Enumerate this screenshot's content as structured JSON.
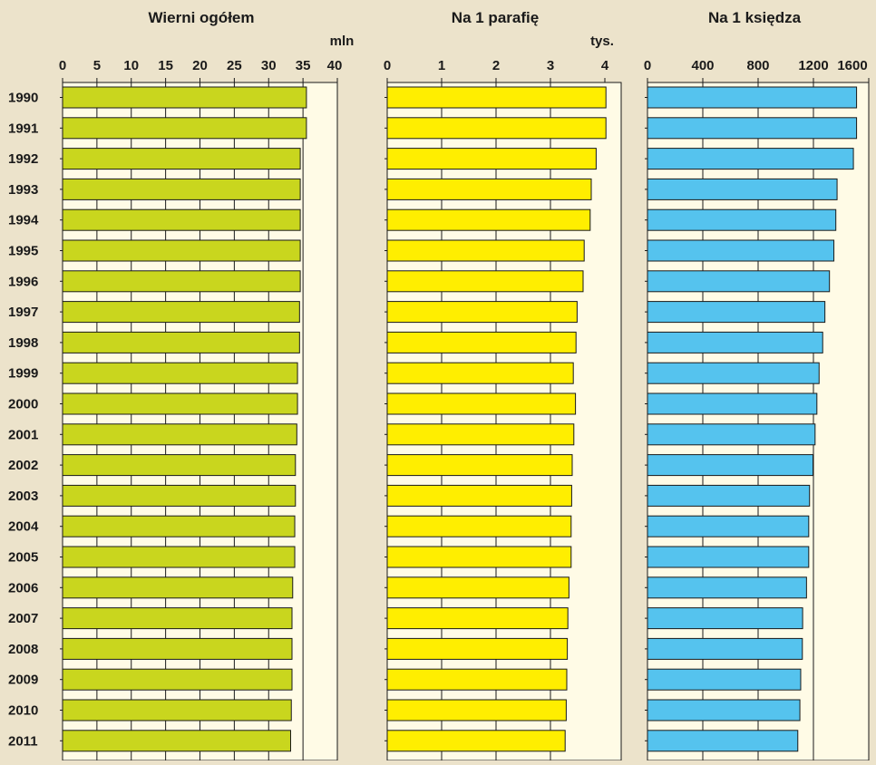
{
  "colors": {
    "background": "#ece3cb",
    "plot_area": "#fffbe6",
    "series_colors": [
      "#c9d61e",
      "#ffee00",
      "#55c3ee"
    ],
    "bar_stroke": "#1a1a1a"
  },
  "chart_data": [
    {
      "type": "bar",
      "orientation": "horizontal",
      "title": "Wierni ogółem",
      "unit": "mln",
      "xlim": [
        0,
        40
      ],
      "ticks": [
        0,
        5,
        10,
        15,
        20,
        25,
        30,
        35,
        40
      ],
      "tick_labels": [
        "0",
        "5",
        "10",
        "15",
        "20",
        "25",
        "30",
        "35",
        "40"
      ],
      "grid": true,
      "categories": [
        "1990",
        "1991",
        "1992",
        "1993",
        "1994",
        "1995",
        "1996",
        "1997",
        "1998",
        "1999",
        "2000",
        "2001",
        "2002",
        "2003",
        "2004",
        "2005",
        "2006",
        "2007",
        "2008",
        "2009",
        "2010",
        "2011"
      ],
      "values": [
        35.5,
        35.5,
        34.6,
        34.6,
        34.6,
        34.6,
        34.6,
        34.5,
        34.5,
        34.2,
        34.2,
        34.1,
        33.9,
        33.9,
        33.8,
        33.8,
        33.5,
        33.4,
        33.4,
        33.4,
        33.3,
        33.2
      ]
    },
    {
      "type": "bar",
      "orientation": "horizontal",
      "title": "Na 1 parafię",
      "unit": "tys.",
      "xlim": [
        0,
        4.3
      ],
      "ticks": [
        0,
        1,
        2,
        3,
        4
      ],
      "tick_labels": [
        "0",
        "1",
        "2",
        "3",
        "4"
      ],
      "grid": true,
      "categories": [
        "1990",
        "1991",
        "1992",
        "1993",
        "1994",
        "1995",
        "1996",
        "1997",
        "1998",
        "1999",
        "2000",
        "2001",
        "2002",
        "2003",
        "2004",
        "2005",
        "2006",
        "2007",
        "2008",
        "2009",
        "2010",
        "2011"
      ],
      "values": [
        4.02,
        4.02,
        3.84,
        3.75,
        3.73,
        3.62,
        3.6,
        3.49,
        3.47,
        3.42,
        3.46,
        3.43,
        3.4,
        3.39,
        3.38,
        3.38,
        3.34,
        3.32,
        3.31,
        3.3,
        3.29,
        3.27
      ]
    },
    {
      "type": "bar",
      "orientation": "horizontal",
      "title": "Na 1 księdza",
      "xlim": [
        0,
        1600
      ],
      "ticks": [
        0,
        400,
        800,
        1200,
        1600
      ],
      "tick_labels": [
        "0",
        "400",
        "800",
        "1200",
        "1600"
      ],
      "grid": true,
      "categories": [
        "1990",
        "1991",
        "1992",
        "1993",
        "1994",
        "1995",
        "1996",
        "1997",
        "1998",
        "1999",
        "2000",
        "2001",
        "2002",
        "2003",
        "2004",
        "2005",
        "2006",
        "2007",
        "2008",
        "2009",
        "2010",
        "2011"
      ],
      "values": [
        1512,
        1512,
        1489,
        1371,
        1362,
        1348,
        1316,
        1283,
        1267,
        1241,
        1225,
        1212,
        1197,
        1172,
        1166,
        1166,
        1150,
        1122,
        1120,
        1108,
        1102,
        1087
      ]
    }
  ]
}
